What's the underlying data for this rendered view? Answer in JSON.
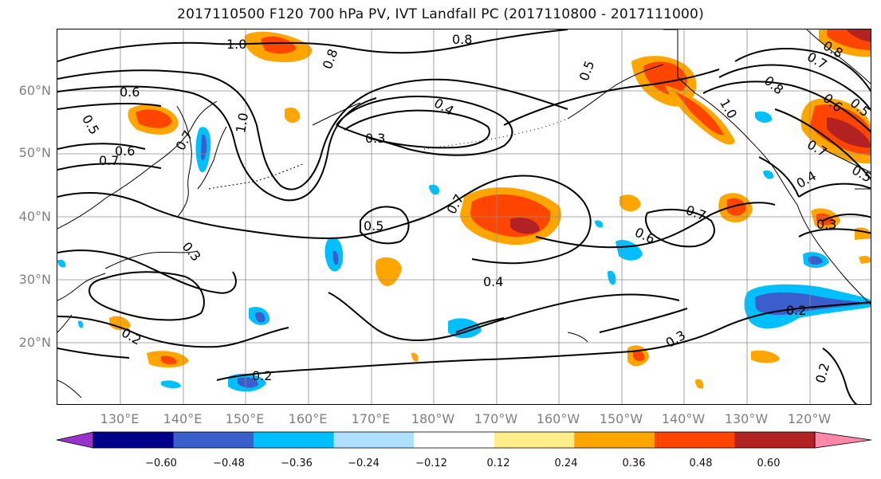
{
  "title": "2017110500 F120 700 hPa PV, IVT Landfall PC (2017110800 - 2017111000)",
  "lat_labels": [
    "60°N",
    "50°N",
    "40°N",
    "30°N",
    "20°N"
  ],
  "lon_labels": [
    "130°E",
    "140°E",
    "150°E",
    "160°E",
    "170°E",
    "180°W",
    "170°W",
    "160°W",
    "150°W",
    "140°W",
    "130°W",
    "120°W"
  ],
  "contour_labels": [
    "1.0",
    "0.8",
    "0.8",
    "0.5",
    "0.6",
    "0.5",
    "0.6",
    "0.7",
    "0.7",
    "1.0",
    "0.4",
    "0.3",
    "0.7",
    "0.5",
    "0.3",
    "0.4",
    "0.2",
    "0.2",
    "0.6",
    "0.7",
    "0.3",
    "0.2",
    "1.0",
    "0.8",
    "0.7",
    "0.6",
    "0.5",
    "0.8",
    "0.7",
    "0.5",
    "0.4",
    "0.3",
    "0.2"
  ],
  "colorbar": {
    "ticks": [
      "−0.60",
      "−0.48",
      "−0.36",
      "−0.24",
      "−0.12",
      "0.12",
      "0.24",
      "0.36",
      "0.48",
      "0.60"
    ],
    "colors": [
      "#9932cc",
      "#00008b",
      "#3a5fcd",
      "#00bfff",
      "#b0e0ff",
      "#ffffff",
      "#ffec8b",
      "#ffa500",
      "#ff4500",
      "#b22222",
      "#ff88aa"
    ]
  },
  "colors": {
    "contour": "#000000",
    "coast": "#000000",
    "grid": "#8c8c8c",
    "axis_label": "#808080"
  }
}
